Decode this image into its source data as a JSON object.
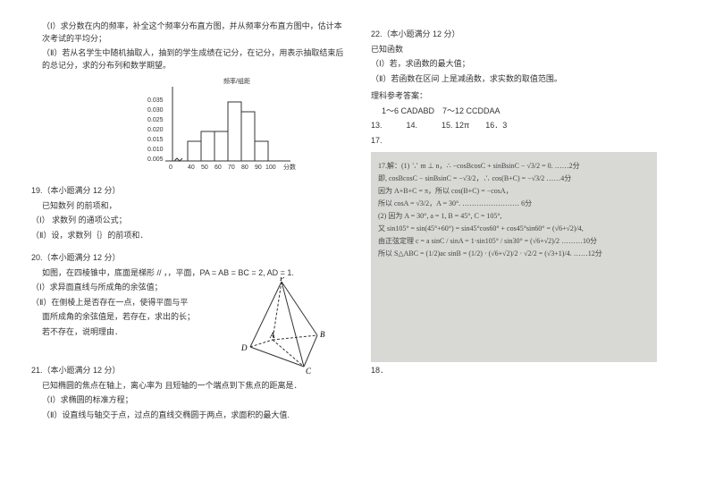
{
  "left": {
    "intro1": "（Ⅰ）求分数在内的频率，补全这个频率分布直方图，并从频率分布直方图中，估计本次考试的平均分；",
    "intro2": "（Ⅱ）若从名学生中随机抽取人，抽到的学生成绩在记分，在记分，用表示抽取结束后的总记分，求的分布列和数学期望。",
    "histogram": {
      "ylabel": "频率/组距",
      "y_ticks": [
        "0.005",
        "0.010",
        "0.015",
        "0.020",
        "0.025",
        "0.030",
        "0.035"
      ],
      "x_ticks": [
        "0",
        "40",
        "50",
        "60",
        "70",
        "80",
        "90",
        "100"
      ],
      "xlabel": "分数",
      "bars": [
        {
          "x": 40,
          "h": 0.01
        },
        {
          "x": 50,
          "h": 0.015
        },
        {
          "x": 60,
          "h": 0.015
        },
        {
          "x": 70,
          "h": 0.03
        },
        {
          "x": 80,
          "h": 0.025
        },
        {
          "x": 90,
          "h": 0.01
        }
      ],
      "bar_fill": "#ffffff",
      "bar_stroke": "#333333",
      "axis_color": "#333333"
    },
    "q19": {
      "title": "19.（本小题满分 12 分）",
      "l1": "已知数列 的前项和，",
      "l2": "（Ⅰ） 求数列 的通项公式；",
      "l3": "（Ⅱ）设，求数列｛｝的前项和．"
    },
    "q20": {
      "title": "20.（本小题满分 12 分）",
      "l1": "如图，在四棱锥中，底面是梯形    // ，，平面，PA = AB = BC = 2, AD = 1.",
      "l2": "（Ⅰ）求异面直线与所成角的余弦值；",
      "l3": "（Ⅱ）在侧棱上是否存在一点，使得平面与平",
      "l4": "面所成角的余弦值是，若存在，求出的长；",
      "l5": "若不存在，说明理由．",
      "pyramid_labels": {
        "P": "P",
        "A": "A",
        "B": "B",
        "C": "C",
        "D": "D"
      }
    },
    "q21": {
      "title": "21.（本小题满分 12 分）",
      "l1": "已知椭圆的焦点在轴上，离心率为  且短轴的一个端点到下焦点的距离是．",
      "l2": "（Ⅰ）求椭圆的标准方程；",
      "l3": "（Ⅱ）设直线与轴交于点，过点的直线交椭圆于两点，求面积的最大值."
    }
  },
  "right": {
    "q22": {
      "title": "22.（本小题满分 12 分）",
      "l1": "已知函数",
      "l2": "（Ⅰ）若，求函数的最大值；",
      "l3": "（Ⅱ）若函数在区间   上是减函数，求实数的取值范围。"
    },
    "answers_title": "理科参考答案：",
    "answers": {
      "a1": "1～6 CADABD　7～12 CCDDAA",
      "a2": "13.　　　14.　　　15. 12π　　16．3",
      "a3": "17."
    },
    "scan": {
      "l1": "17.解：(1) ∵ m ⊥ n，∴ −cosBcosC + sinBsinC − √3/2 = 0.   ……2分",
      "l2": "即, cosBcosC − sinBsinC = −√3/2，∴ cos(B+C) = −√3/2    ……4分",
      "l3": "因为 A+B+C = π，所以 cos(B+C) = −cosA，",
      "l4": "所以 cosA = √3/2，A = 30°.   …………………… 6分",
      "l5": "(2) 因为 A = 30°, a = 1, B = 45°, C = 105°,",
      "l6": "又 sin105° = sin(45°+60°) = sin45°cos60° + cos45°sin60° = (√6+√2)/4,",
      "l7": "由正弦定理 c = a sinC / sinA = 1·sin105° / sin30° = (√6+√2)/2   ………10分",
      "l8": "所以 S△ABC = (1/2)ac sinB = (1/2) · (√6+√2)/2 · √2/2 = (√3+1)/4.   ……12分"
    },
    "a18": "18．"
  }
}
